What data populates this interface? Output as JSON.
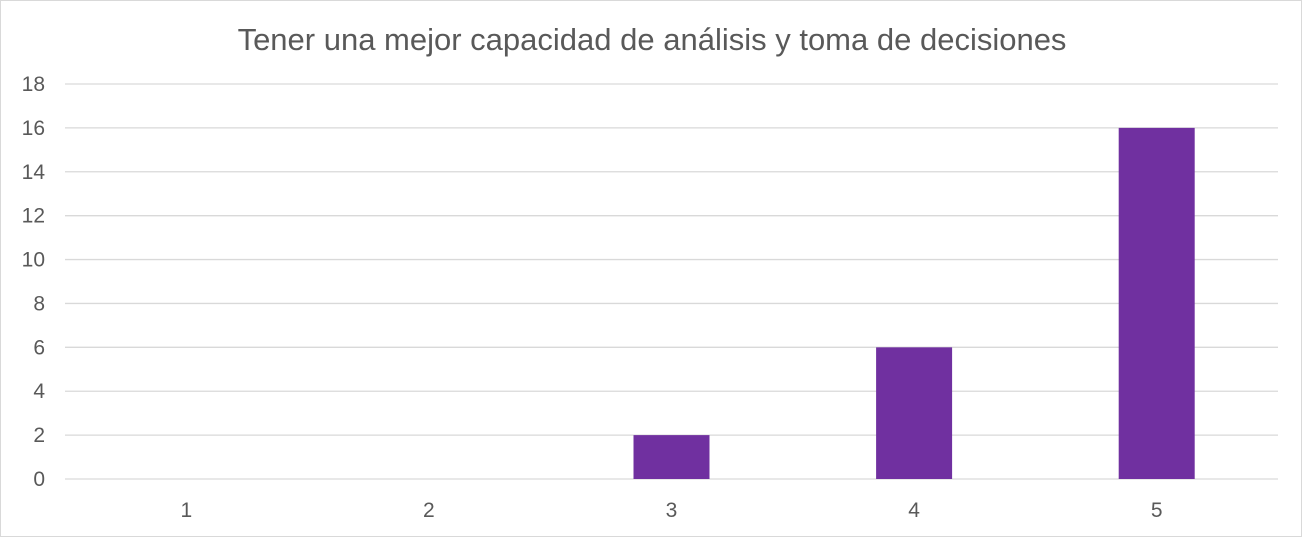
{
  "chart_data": {
    "type": "bar",
    "title": "Tener una mejor capacidad de análisis y toma de decisiones",
    "xlabel": "",
    "ylabel": "",
    "categories": [
      "1",
      "2",
      "3",
      "4",
      "5"
    ],
    "values": [
      0,
      0,
      2,
      6,
      16
    ],
    "ylim": [
      0,
      18
    ],
    "yticks": [
      0,
      2,
      4,
      6,
      8,
      10,
      12,
      14,
      16,
      18
    ],
    "grid": true,
    "legend": "none",
    "colors": {
      "bar": "#7030a0",
      "grid": "#d9d9d9",
      "text": "#595959"
    }
  }
}
